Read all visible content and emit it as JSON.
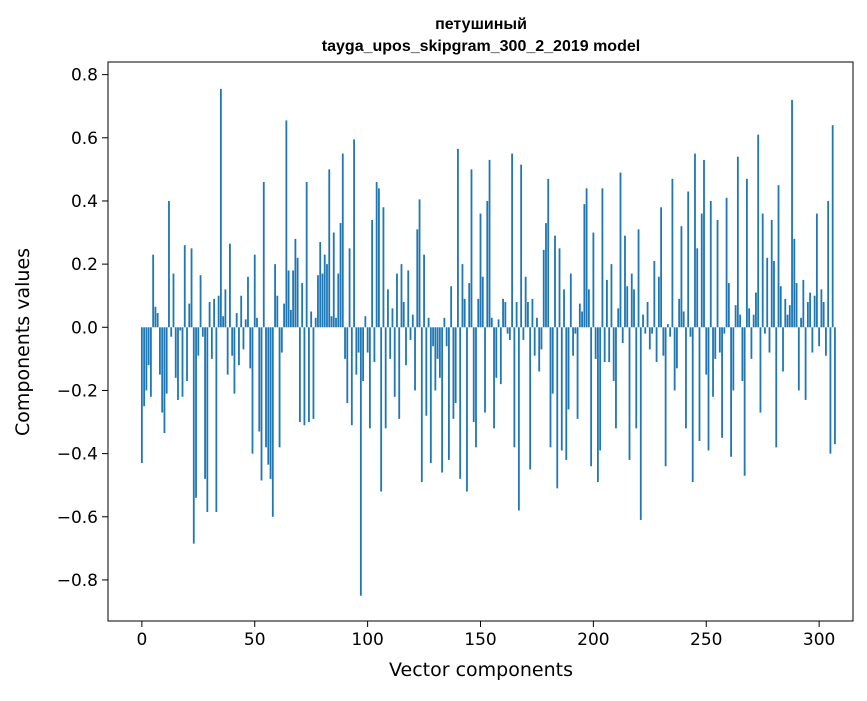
{
  "chart_data": {
    "type": "bar",
    "title_line1": "петушиный",
    "title_line2": "tayga_upos_skipgram_300_2_2019 model",
    "xlabel": "Vector components",
    "ylabel": "Components values",
    "xlim": [
      -15,
      315
    ],
    "ylim": [
      -0.93,
      0.84
    ],
    "xticks": [
      0,
      50,
      100,
      150,
      200,
      250,
      300
    ],
    "yticks": [
      -0.8,
      -0.6,
      -0.4,
      -0.2,
      0.0,
      0.2,
      0.4,
      0.6,
      0.8
    ],
    "ytick_labels": [
      "−0.8",
      "−0.6",
      "−0.4",
      "−0.2",
      "0.0",
      "0.2",
      "0.4",
      "0.6",
      "0.8"
    ],
    "bar_color": "#1f77b4",
    "grid": false,
    "values": [
      -0.43,
      -0.25,
      -0.2,
      -0.12,
      -0.22,
      0.23,
      0.065,
      0.045,
      -0.15,
      -0.27,
      -0.335,
      -0.21,
      0.4,
      -0.03,
      0.17,
      -0.16,
      -0.23,
      -0.01,
      -0.22,
      0.26,
      -0.17,
      0.075,
      0.25,
      -0.685,
      -0.54,
      -0.09,
      0.165,
      -0.03,
      -0.48,
      -0.585,
      0.08,
      -0.1,
      0.09,
      -0.585,
      0.1,
      0.755,
      0.035,
      0.12,
      -0.15,
      0.265,
      -0.09,
      -0.21,
      0.045,
      -0.12,
      0.1,
      -0.07,
      0.025,
      0.16,
      -0.13,
      -0.4,
      0.23,
      0.03,
      -0.33,
      -0.485,
      0.46,
      -0.38,
      -0.435,
      -0.48,
      -0.6,
      0.2,
      0.1,
      -0.38,
      -0.08,
      0.075,
      0.655,
      0.18,
      0.055,
      0.18,
      0.28,
      0.22,
      -0.3,
      0.14,
      -0.31,
      0.46,
      -0.3,
      0.05,
      -0.29,
      0.03,
      0.165,
      0.27,
      0.17,
      0.23,
      0.2,
      0.5,
      0.035,
      0.3,
      0.03,
      0.17,
      0.33,
      0.55,
      -0.1,
      -0.24,
      0.25,
      -0.31,
      0.595,
      -0.15,
      -0.08,
      -0.85,
      -0.17,
      0.035,
      -0.08,
      -0.32,
      0.34,
      -0.11,
      0.46,
      0.44,
      -0.52,
      0.38,
      -0.32,
      0.12,
      -0.1,
      0.06,
      -0.22,
      0.17,
      -0.29,
      0.2,
      0.08,
      -0.12,
      0.18,
      -0.04,
      0.04,
      -0.2,
      0.31,
      0.405,
      -0.49,
      0.23,
      -0.28,
      0.03,
      -0.43,
      -0.06,
      -0.2,
      -0.1,
      -0.16,
      -0.46,
      0.03,
      -0.06,
      -0.42,
      0.13,
      -0.29,
      -0.24,
      0.565,
      -0.48,
      0.2,
      0.09,
      -0.52,
      0.14,
      0.5,
      -0.3,
      -0.38,
      0.09,
      0.36,
      0.16,
      -0.27,
      0.4,
      0.53,
      0.03,
      -0.32,
      -0.16,
      0.025,
      -0.18,
      0.09,
      0.08,
      -0.02,
      -0.04,
      0.55,
      -0.38,
      0.08,
      -0.58,
      0.515,
      -0.04,
      0.16,
      0.08,
      -0.45,
      0.09,
      -0.09,
      0.03,
      -0.14,
      -0.07,
      0.245,
      0.33,
      0.47,
      -0.38,
      -0.21,
      0.29,
      -0.51,
      0.25,
      -0.39,
      0.12,
      -0.42,
      -0.26,
      0.17,
      -0.09,
      -0.02,
      -0.29,
      0.075,
      0.05,
      0.39,
      0.44,
      0.12,
      -0.44,
      0.3,
      -0.1,
      -0.49,
      -0.39,
      0.44,
      -0.11,
      0.15,
      -0.11,
      0.2,
      -0.17,
      -0.32,
      0.06,
      0.49,
      -0.05,
      0.29,
      0.13,
      -0.42,
      0.17,
      0.12,
      -0.32,
      0.31,
      -0.61,
      0.04,
      -0.02,
      0.08,
      -0.07,
      -0.02,
      0.21,
      -0.11,
      0.16,
      0.38,
      -0.09,
      -0.44,
      0.01,
      -0.03,
      0.47,
      -0.2,
      -0.13,
      0.09,
      0.32,
      0.05,
      -0.32,
      0.43,
      -0.03,
      -0.49,
      0.55,
      0.25,
      -0.36,
      0.36,
      0.53,
      -0.15,
      -0.39,
      0.4,
      -0.22,
      -0.1,
      0.34,
      -0.08,
      -0.35,
      -0.02,
      0.41,
      0.14,
      -0.41,
      -0.2,
      0.07,
      0.54,
      0.04,
      -0.17,
      -0.47,
      0.47,
      0.06,
      -0.1,
      0.04,
      0.11,
      0.61,
      -0.27,
      0.36,
      -0.02,
      0.22,
      -0.08,
      0.34,
      0.21,
      -0.38,
      0.45,
      0.13,
      -0.14,
      0.09,
      0.04,
      0.07,
      0.72,
      0.28,
      0.14,
      -0.2,
      0.03,
      0.15,
      -0.23,
      0.08,
      0.11,
      -0.08,
      0.1,
      0.36,
      -0.06,
      0.12,
      0.08,
      -0.09,
      0.4,
      -0.4,
      0.64,
      -0.37
    ]
  }
}
